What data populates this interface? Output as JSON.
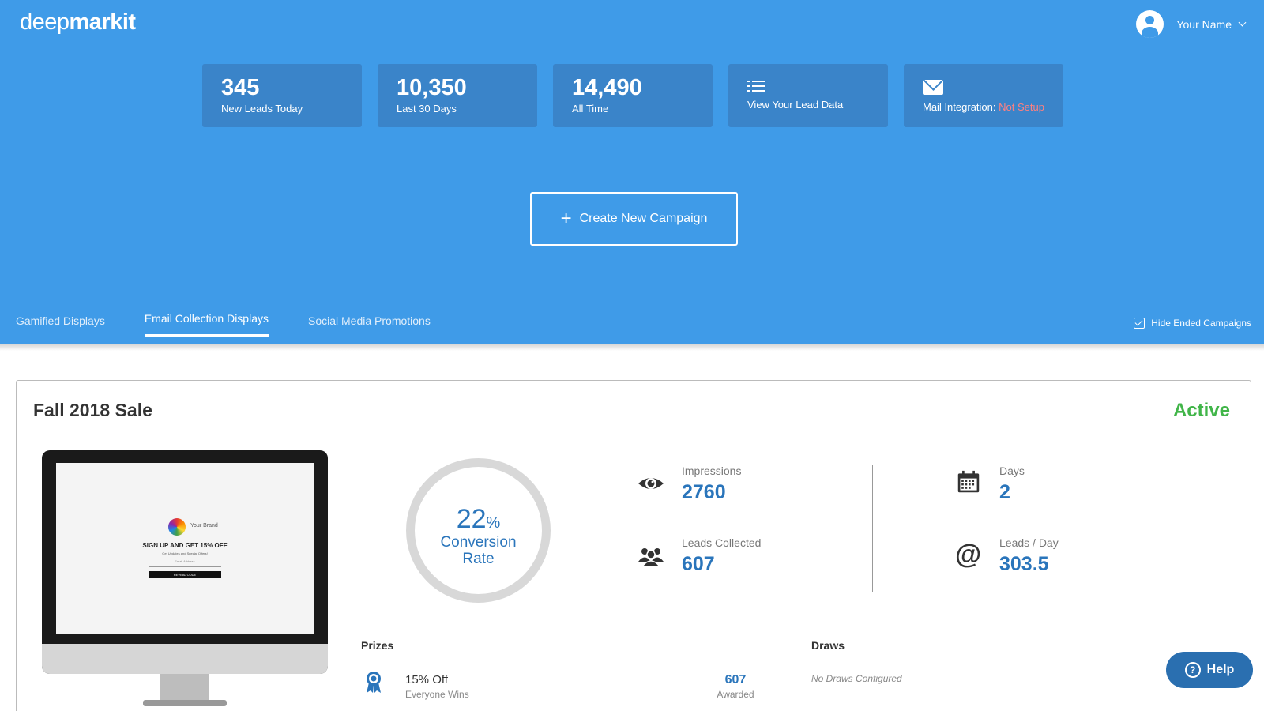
{
  "app": {
    "logo_light": "deep",
    "logo_bold": "markit"
  },
  "user": {
    "name": "Your Name"
  },
  "stats": [
    {
      "value": "345",
      "label": "New Leads Today"
    },
    {
      "value": "10,350",
      "label": "Last 30 Days"
    },
    {
      "value": "14,490",
      "label": "All Time"
    }
  ],
  "actions": {
    "lead_data_label": "View Your Lead Data",
    "mail_label": "Mail Integration: ",
    "mail_status": "Not Setup"
  },
  "create_campaign": {
    "plus": "+",
    "label": "Create New Campaign"
  },
  "tabs": [
    {
      "label": "Gamified Displays"
    },
    {
      "label": "Email Collection Displays",
      "active": true
    },
    {
      "label": "Social Media Promotions"
    }
  ],
  "hide_ended": {
    "label": "Hide Ended Campaigns",
    "checked": true
  },
  "campaign": {
    "title": "Fall 2018 Sale",
    "status": "Active",
    "preview": {
      "brand": "Your Brand",
      "headline": "SIGN UP AND GET 15% OFF",
      "subline": "Get Updates and Special Offers!",
      "field_placeholder": "Email Address",
      "button": "REVEAL CODE"
    },
    "conversion": {
      "value": "22",
      "unit": "%",
      "label_line1": "Conversion",
      "label_line2": "Rate"
    },
    "impressions": {
      "label": "Impressions",
      "value": "2760"
    },
    "leads_collected": {
      "label": "Leads Collected",
      "value": "607"
    },
    "days": {
      "label": "Days",
      "value": "2"
    },
    "leads_per_day": {
      "label": "Leads / Day",
      "value": "303.5"
    },
    "prizes": {
      "label": "Prizes",
      "items": [
        {
          "name": "15% Off",
          "subtitle": "Everyone Wins",
          "awarded": "607",
          "awarded_label": "Awarded"
        }
      ]
    },
    "draws": {
      "label": "Draws",
      "empty_text": "No Draws Configured"
    }
  },
  "help": {
    "q": "?",
    "label": "Help"
  },
  "colors": {
    "header_blue": "#3f9be8",
    "card_blue": "#3a84c9",
    "accent_blue": "#2a75bb",
    "active_green": "#41b549",
    "warn": "#ff8080"
  }
}
